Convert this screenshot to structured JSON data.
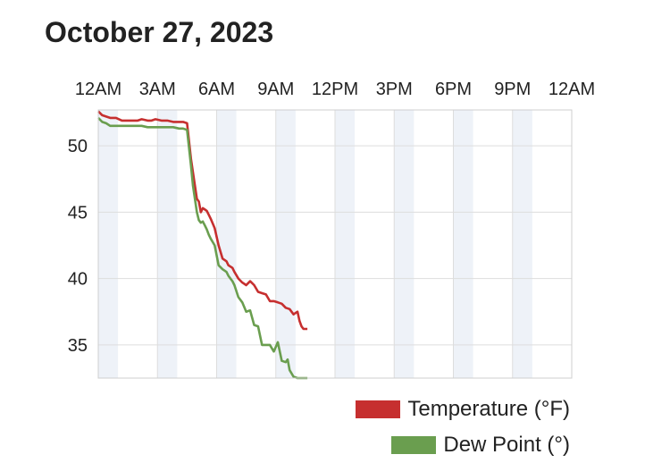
{
  "page": {
    "title": "October 27, 2023"
  },
  "colors": {
    "temperature": "#c62f2f",
    "dew_point": "#6a9e4f",
    "band": "#eef2f8",
    "grid": "#dddddd"
  },
  "chart_data": {
    "type": "line",
    "title": "October 27, 2023",
    "x_unit": "hour of day",
    "x_ticks": [
      "12AM",
      "3AM",
      "6AM",
      "9AM",
      "12PM",
      "3PM",
      "6PM",
      "9PM",
      "12AM"
    ],
    "x_tick_hours": [
      0,
      3,
      6,
      9,
      12,
      15,
      18,
      21,
      24
    ],
    "xlim": [
      0,
      24
    ],
    "ylim": [
      32.5,
      52.7
    ],
    "y_ticks": [
      35,
      40,
      45,
      50
    ],
    "grid": true,
    "legend_position": "bottom-right",
    "series": [
      {
        "name": "Temperature (°F)",
        "x": [
          0.0,
          0.2,
          0.4,
          0.6,
          0.9,
          1.2,
          1.5,
          1.8,
          2.0,
          2.2,
          2.5,
          2.7,
          2.9,
          3.2,
          3.5,
          3.8,
          4.1,
          4.3,
          4.5,
          4.7,
          4.8,
          4.9,
          5.0,
          5.1,
          5.2,
          5.3,
          5.4,
          5.5,
          5.6,
          5.7,
          5.9,
          6.1,
          6.3,
          6.5,
          6.6,
          6.8,
          6.9,
          7.1,
          7.3,
          7.5,
          7.7,
          7.9,
          8.1,
          8.3,
          8.5,
          8.7,
          8.9,
          9.1,
          9.3,
          9.5,
          9.7,
          9.9,
          10.1,
          10.2,
          10.3,
          10.4,
          10.6
        ],
        "values": [
          52.6,
          52.3,
          52.2,
          52.1,
          52.1,
          51.9,
          51.9,
          51.9,
          51.9,
          52.0,
          51.9,
          51.9,
          52.0,
          51.9,
          51.9,
          51.8,
          51.8,
          51.8,
          51.7,
          49.0,
          48.0,
          47.0,
          46.0,
          45.8,
          45.0,
          45.3,
          45.2,
          45.1,
          44.8,
          44.5,
          43.8,
          42.5,
          41.5,
          41.3,
          41.0,
          40.8,
          40.5,
          40.0,
          39.7,
          39.5,
          39.8,
          39.5,
          39.0,
          38.9,
          38.8,
          38.3,
          38.3,
          38.2,
          38.1,
          37.8,
          37.7,
          37.3,
          37.5,
          36.8,
          36.4,
          36.2,
          36.2
        ]
      },
      {
        "name": "Dew Point (°)",
        "x": [
          0.0,
          0.2,
          0.4,
          0.6,
          0.9,
          1.2,
          1.5,
          1.8,
          2.0,
          2.2,
          2.5,
          2.7,
          2.9,
          3.2,
          3.5,
          3.8,
          4.1,
          4.3,
          4.5,
          4.7,
          4.8,
          4.9,
          5.0,
          5.1,
          5.2,
          5.3,
          5.4,
          5.5,
          5.6,
          5.7,
          5.9,
          6.1,
          6.3,
          6.5,
          6.6,
          6.8,
          6.9,
          7.1,
          7.3,
          7.5,
          7.7,
          7.9,
          8.1,
          8.3,
          8.5,
          8.7,
          8.9,
          9.1,
          9.3,
          9.5,
          9.6,
          9.7,
          9.9,
          10.1,
          10.3,
          10.4,
          10.6
        ],
        "values": [
          52.1,
          51.8,
          51.7,
          51.5,
          51.5,
          51.5,
          51.5,
          51.5,
          51.5,
          51.5,
          51.4,
          51.4,
          51.4,
          51.4,
          51.4,
          51.4,
          51.3,
          51.3,
          51.2,
          48.5,
          47.0,
          46.0,
          45.0,
          44.4,
          44.2,
          44.3,
          44.0,
          43.7,
          43.3,
          43.0,
          42.5,
          41.0,
          40.7,
          40.5,
          40.2,
          39.8,
          39.5,
          38.6,
          38.2,
          37.5,
          37.6,
          36.5,
          36.4,
          35.0,
          35.0,
          35.0,
          34.5,
          35.2,
          33.8,
          33.7,
          33.9,
          33.1,
          32.6,
          32.5,
          32.5,
          32.5,
          32.5
        ]
      }
    ]
  }
}
